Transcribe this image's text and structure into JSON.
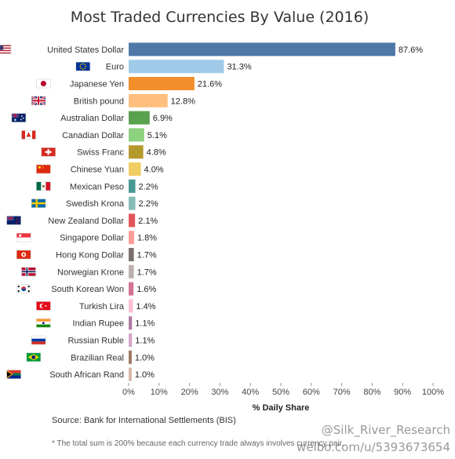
{
  "chart_data": {
    "type": "bar",
    "orientation": "horizontal",
    "title": "Most Traded Currencies By Value (2016)",
    "xlabel": "% Daily Share",
    "ylabel": "",
    "xlim": [
      0,
      100
    ],
    "xticks": [
      "0%",
      "10%",
      "20%",
      "30%",
      "40%",
      "50%",
      "60%",
      "70%",
      "80%",
      "90%",
      "100%"
    ],
    "grid": false,
    "categories": [
      "United States Dollar",
      "Euro",
      "Japanese Yen",
      "British pound",
      "Australian Dollar",
      "Canadian Dollar",
      "Swiss Franc",
      "Chinese Yuan",
      "Mexican Peso",
      "Swedish Krona",
      "New Zealand Dollar",
      "Singapore Dollar",
      "Hong Kong Dollar",
      "Norwegian Krone",
      "South Korean Won",
      "Turkish Lira",
      "Indian Rupee",
      "Russian Ruble",
      "Brazilian Real",
      "South African Rand"
    ],
    "values": [
      87.6,
      31.3,
      21.6,
      12.8,
      6.9,
      5.1,
      4.8,
      4.0,
      2.2,
      2.2,
      2.1,
      1.8,
      1.7,
      1.7,
      1.6,
      1.4,
      1.1,
      1.1,
      1.0,
      1.0
    ],
    "value_labels": [
      "87.6%",
      "31.3%",
      "21.6%",
      "12.8%",
      "6.9%",
      "5.1%",
      "4.8%",
      "4.0%",
      "2.2%",
      "2.2%",
      "2.1%",
      "1.8%",
      "1.7%",
      "1.7%",
      "1.6%",
      "1.4%",
      "1.1%",
      "1.1%",
      "1.0%",
      "1.0%"
    ],
    "colors": [
      "#4e79a7",
      "#a0cbe8",
      "#f28e2b",
      "#ffbe7d",
      "#59a14f",
      "#8cd17d",
      "#b6992d",
      "#f1ce63",
      "#499894",
      "#86bcb6",
      "#e15759",
      "#ff9d9a",
      "#79706e",
      "#bab0ac",
      "#d37295",
      "#fabfd2",
      "#b07aa1",
      "#d4a6c8",
      "#9d7660",
      "#d7b5a6"
    ],
    "flags": [
      "us-flag-icon",
      "eu-flag-icon",
      "jp-flag-icon",
      "gb-flag-icon",
      "au-flag-icon",
      "ca-flag-icon",
      "ch-flag-icon",
      "cn-flag-icon",
      "mx-flag-icon",
      "se-flag-icon",
      "nz-flag-icon",
      "sg-flag-icon",
      "hk-flag-icon",
      "no-flag-icon",
      "kr-flag-icon",
      "tr-flag-icon",
      "in-flag-icon",
      "ru-flag-icon",
      "br-flag-icon",
      "za-flag-icon"
    ]
  },
  "source": {
    "label": "Source:",
    "text": "Bank for International Settlements (BIS)"
  },
  "footnote": "* The total sum is 200% because each currency trade always involves currency pair.",
  "watermark": {
    "handle": "@Silk_River_Research",
    "url": "weibo.com/u/5393673654"
  }
}
